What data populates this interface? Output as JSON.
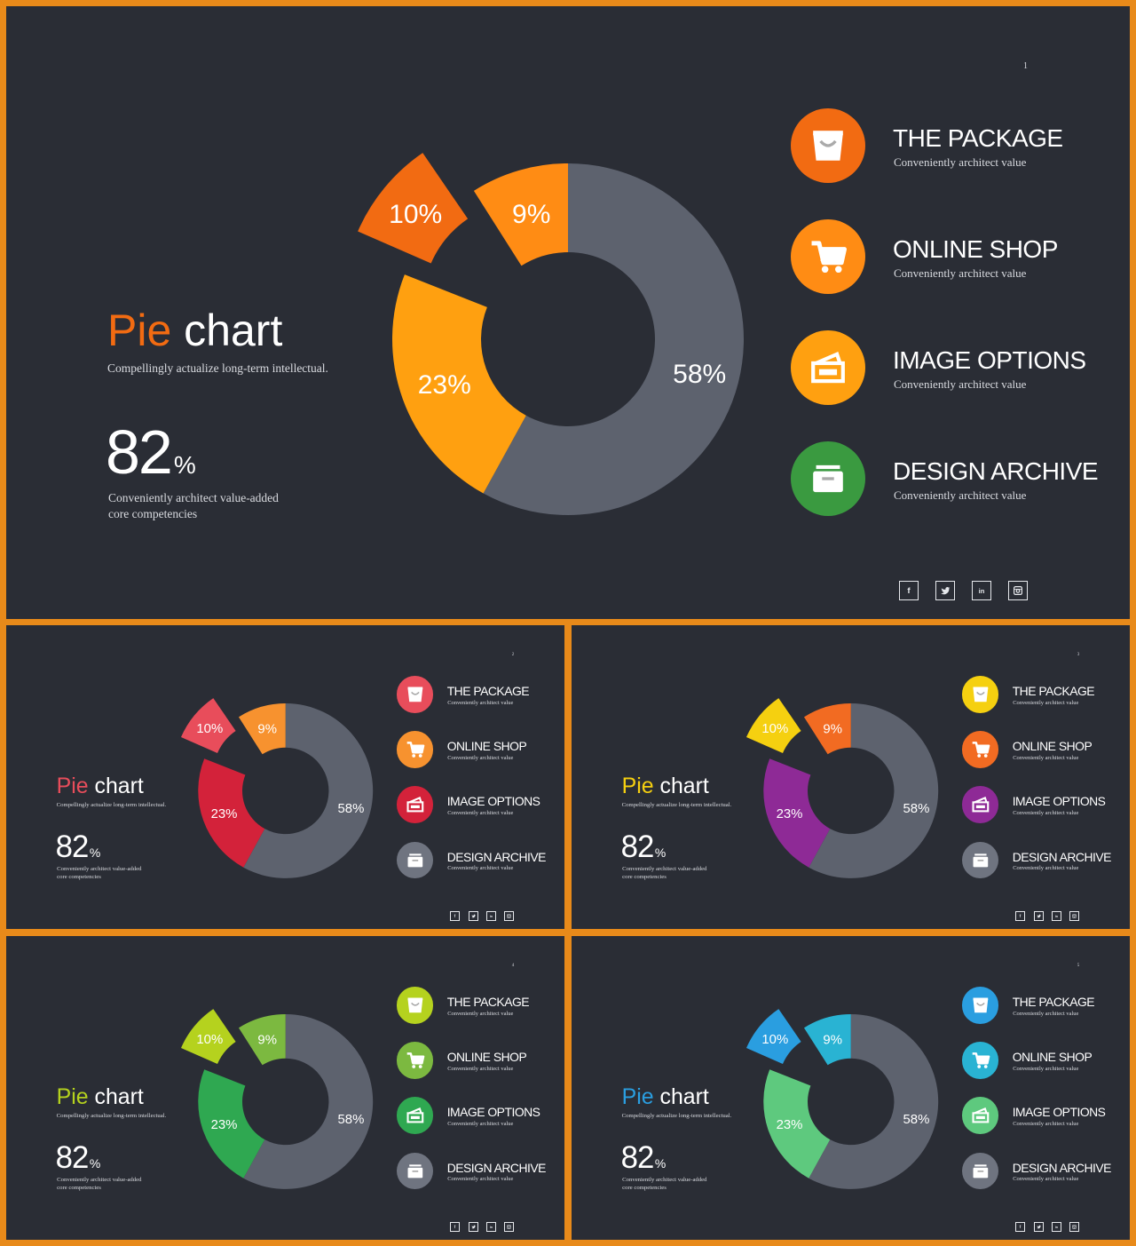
{
  "slides": [
    {
      "page_number": "1",
      "title_colored": "Pie",
      "title_rest": "chart",
      "subtitle": "Compellingly actualize long-term intellectual.",
      "big_number": "82",
      "big_unit": "%",
      "big_desc_line1": "Conveniently architect value-added",
      "big_desc_line2": "core competencies",
      "colors": {
        "accent": "#f26b12",
        "s10": "#f26b12",
        "s9": "#ff8c14",
        "s23": "#ffa010",
        "s58": "#5d626e",
        "i1": "#f26b12",
        "i2": "#ff8c14",
        "i3": "#ffa010",
        "i4": "#3a9a40"
      },
      "legend": [
        {
          "label": "THE PACKAGE",
          "desc": "Conveniently architect value",
          "icon": "bag-icon"
        },
        {
          "label": "ONLINE SHOP",
          "desc": "Conveniently architect value",
          "icon": "cart-icon"
        },
        {
          "label": "IMAGE OPTIONS",
          "desc": "Conveniently architect value",
          "icon": "image-icon"
        },
        {
          "label": "DESIGN ARCHIVE",
          "desc": "Conveniently architect value",
          "icon": "archive-icon"
        }
      ],
      "social": [
        "facebook-icon",
        "twitter-icon",
        "linkedin-icon",
        "instagram-icon"
      ]
    },
    {
      "page_number": "2",
      "title_colored": "Pie",
      "title_rest": "chart",
      "subtitle": "Compellingly actualize long-term intellectual.",
      "big_number": "82",
      "big_unit": "%",
      "big_desc_line1": "Conveniently architect value-added",
      "big_desc_line2": "core competencies",
      "colors": {
        "accent": "#e84d5b",
        "s10": "#e84d5b",
        "s9": "#f7922f",
        "s23": "#d3223a",
        "s58": "#5d626e",
        "i1": "#e84d5b",
        "i2": "#f7922f",
        "i3": "#d3223a",
        "i4": "#6f7480"
      },
      "legend": [
        {
          "label": "THE PACKAGE",
          "desc": "Conveniently architect value",
          "icon": "bag-icon"
        },
        {
          "label": "ONLINE SHOP",
          "desc": "Conveniently architect value",
          "icon": "cart-icon"
        },
        {
          "label": "IMAGE OPTIONS",
          "desc": "Conveniently architect value",
          "icon": "image-icon"
        },
        {
          "label": "DESIGN ARCHIVE",
          "desc": "Conveniently architect value",
          "icon": "archive-icon"
        }
      ],
      "social": [
        "facebook-icon",
        "twitter-icon",
        "linkedin-icon",
        "instagram-icon"
      ]
    },
    {
      "page_number": "3",
      "title_colored": "Pie",
      "title_rest": "chart",
      "subtitle": "Compellingly actualize long-term intellectual.",
      "big_number": "82",
      "big_unit": "%",
      "big_desc_line1": "Conveniently architect value-added",
      "big_desc_line2": "core competencies",
      "colors": {
        "accent": "#f5cf10",
        "s10": "#f5d010",
        "s9": "#f26b22",
        "s23": "#8e2a96",
        "s58": "#5d626e",
        "i1": "#f5d010",
        "i2": "#f26b22",
        "i3": "#8e2a96",
        "i4": "#6f7480"
      },
      "legend": [
        {
          "label": "THE PACKAGE",
          "desc": "Conveniently architect value",
          "icon": "bag-icon"
        },
        {
          "label": "ONLINE SHOP",
          "desc": "Conveniently architect value",
          "icon": "cart-icon"
        },
        {
          "label": "IMAGE OPTIONS",
          "desc": "Conveniently architect value",
          "icon": "image-icon"
        },
        {
          "label": "DESIGN ARCHIVE",
          "desc": "Conveniently architect value",
          "icon": "archive-icon"
        }
      ],
      "social": [
        "facebook-icon",
        "twitter-icon",
        "linkedin-icon",
        "instagram-icon"
      ]
    },
    {
      "page_number": "4",
      "title_colored": "Pie",
      "title_rest": "chart",
      "subtitle": "Compellingly actualize long-term intellectual.",
      "big_number": "82",
      "big_unit": "%",
      "big_desc_line1": "Conveniently architect value-added",
      "big_desc_line2": "core competencies",
      "colors": {
        "accent": "#b5d21e",
        "s10": "#b5d21e",
        "s9": "#7cb940",
        "s23": "#2fa851",
        "s58": "#5d626e",
        "i1": "#b5d21e",
        "i2": "#7cb940",
        "i3": "#2fa851",
        "i4": "#6f7480"
      },
      "legend": [
        {
          "label": "THE PACKAGE",
          "desc": "Conveniently architect value",
          "icon": "bag-icon"
        },
        {
          "label": "ONLINE SHOP",
          "desc": "Conveniently architect value",
          "icon": "cart-icon"
        },
        {
          "label": "IMAGE OPTIONS",
          "desc": "Conveniently architect value",
          "icon": "image-icon"
        },
        {
          "label": "DESIGN ARCHIVE",
          "desc": "Conveniently architect value",
          "icon": "archive-icon"
        }
      ],
      "social": [
        "facebook-icon",
        "twitter-icon",
        "linkedin-icon",
        "instagram-icon"
      ]
    },
    {
      "page_number": "5",
      "title_colored": "Pie",
      "title_rest": "chart",
      "subtitle": "Compellingly actualize long-term intellectual.",
      "big_number": "82",
      "big_unit": "%",
      "big_desc_line1": "Conveniently architect value-added",
      "big_desc_line2": "core competencies",
      "colors": {
        "accent": "#2a9ee0",
        "s10": "#2a9ee0",
        "s9": "#29b3d3",
        "s23": "#5ec97e",
        "s58": "#5d626e",
        "i1": "#2a9ee0",
        "i2": "#29b3d3",
        "i3": "#5ec97e",
        "i4": "#6f7480"
      },
      "legend": [
        {
          "label": "THE PACKAGE",
          "desc": "Conveniently architect value",
          "icon": "bag-icon"
        },
        {
          "label": "ONLINE SHOP",
          "desc": "Conveniently architect value",
          "icon": "cart-icon"
        },
        {
          "label": "IMAGE OPTIONS",
          "desc": "Conveniently architect value",
          "icon": "image-icon"
        },
        {
          "label": "DESIGN ARCHIVE",
          "desc": "Conveniently architect value",
          "icon": "archive-icon"
        }
      ],
      "social": [
        "facebook-icon",
        "twitter-icon",
        "linkedin-icon",
        "instagram-icon"
      ]
    }
  ],
  "chart_data": [
    {
      "type": "pie",
      "donut": true,
      "title": "",
      "slices": [
        {
          "label": "10%",
          "value": 10,
          "exploded": true
        },
        {
          "label": "9%",
          "value": 9
        },
        {
          "label": "23%",
          "value": 23
        },
        {
          "label": "58%",
          "value": 58
        }
      ]
    },
    {
      "type": "pie",
      "donut": true,
      "title": "",
      "slices": [
        {
          "label": "10%",
          "value": 10,
          "exploded": true
        },
        {
          "label": "9%",
          "value": 9
        },
        {
          "label": "23%",
          "value": 23
        },
        {
          "label": "58%",
          "value": 58
        }
      ]
    },
    {
      "type": "pie",
      "donut": true,
      "title": "",
      "slices": [
        {
          "label": "10%",
          "value": 10,
          "exploded": true
        },
        {
          "label": "9%",
          "value": 9
        },
        {
          "label": "23%",
          "value": 23
        },
        {
          "label": "58%",
          "value": 58
        }
      ]
    },
    {
      "type": "pie",
      "donut": true,
      "title": "",
      "slices": [
        {
          "label": "10%",
          "value": 10,
          "exploded": true
        },
        {
          "label": "9%",
          "value": 9
        },
        {
          "label": "23%",
          "value": 23
        },
        {
          "label": "58%",
          "value": 58
        }
      ]
    },
    {
      "type": "pie",
      "donut": true,
      "title": "",
      "slices": [
        {
          "label": "10%",
          "value": 10,
          "exploded": true
        },
        {
          "label": "9%",
          "value": 9
        },
        {
          "label": "23%",
          "value": 23
        },
        {
          "label": "58%",
          "value": 58
        }
      ]
    }
  ]
}
